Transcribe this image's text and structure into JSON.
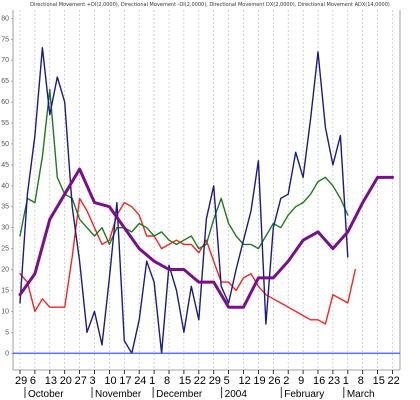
{
  "chart_data": {
    "type": "line",
    "title": "Directional Movement +DI(2,0000), Directional Movement -DI(2,0000), Directional Movement DX(2,0000), Directional Movement ADX(14,0000)",
    "ylim": [
      -4,
      82
    ],
    "y_ticks": [
      0,
      5,
      10,
      15,
      20,
      25,
      30,
      35,
      40,
      45,
      50,
      55,
      60,
      65,
      70,
      75,
      80
    ],
    "x_range": [
      0,
      38
    ],
    "x_ticks": [
      {
        "x": 0,
        "label": "29"
      },
      {
        "x": 1,
        "label": "6"
      },
      {
        "x": 2,
        "label": "13"
      },
      {
        "x": 3,
        "label": "20"
      },
      {
        "x": 4,
        "label": "27"
      },
      {
        "x": 5,
        "label": "3"
      },
      {
        "x": 6,
        "label": "10"
      },
      {
        "x": 7,
        "label": "17"
      },
      {
        "x": 8,
        "label": "24"
      },
      {
        "x": 9,
        "label": "1"
      },
      {
        "x": 10,
        "label": "8"
      },
      {
        "x": 11,
        "label": "15"
      },
      {
        "x": 12,
        "label": "22"
      },
      {
        "x": 13,
        "label": "29"
      },
      {
        "x": 14,
        "label": "5"
      },
      {
        "x": 15,
        "label": "12"
      },
      {
        "x": 16,
        "label": "19"
      },
      {
        "x": 17,
        "label": "26"
      },
      {
        "x": 18,
        "label": "2"
      },
      {
        "x": 19,
        "label": "9"
      },
      {
        "x": 20,
        "label": "16"
      },
      {
        "x": 21,
        "label": "23"
      },
      {
        "x": 22,
        "label": "1"
      },
      {
        "x": 23,
        "label": "8"
      },
      {
        "x": 24,
        "label": "15"
      },
      {
        "x": 25,
        "label": "22"
      }
    ],
    "month_labels": [
      {
        "x": 0.2,
        "label": "October"
      },
      {
        "x": 4.7,
        "label": "November"
      },
      {
        "x": 8.8,
        "label": "December"
      },
      {
        "x": 13.4,
        "label": "2004"
      },
      {
        "x": 17.4,
        "label": "February"
      },
      {
        "x": 21.6,
        "label": "March"
      }
    ],
    "hline": {
      "y": 0,
      "color": "#3d5cff"
    },
    "series": [
      {
        "color": "#ff2020",
        "points": [
          [
            0,
            19
          ],
          [
            0.5,
            17
          ],
          [
            1,
            10
          ],
          [
            1.5,
            13
          ],
          [
            2,
            11
          ],
          [
            2.5,
            11
          ],
          [
            3,
            11
          ],
          [
            3.5,
            23
          ],
          [
            4,
            37
          ],
          [
            4.5,
            34
          ],
          [
            5,
            30
          ],
          [
            5.5,
            26
          ],
          [
            6,
            27
          ],
          [
            6.5,
            33
          ],
          [
            7,
            36
          ],
          [
            7.5,
            35
          ],
          [
            8,
            33
          ],
          [
            8.5,
            28
          ],
          [
            9,
            28
          ],
          [
            9.5,
            25
          ],
          [
            10,
            26
          ],
          [
            10.5,
            27
          ],
          [
            11,
            26
          ],
          [
            11.5,
            26
          ],
          [
            12,
            24
          ],
          [
            12.5,
            27
          ],
          [
            13,
            22
          ],
          [
            13.5,
            17
          ],
          [
            14,
            17
          ],
          [
            14.5,
            15
          ],
          [
            15,
            18
          ],
          [
            15.5,
            19
          ],
          [
            16,
            16
          ],
          [
            16.5,
            14
          ],
          [
            17,
            13
          ],
          [
            17.5,
            12
          ],
          [
            18,
            11
          ],
          [
            18.5,
            10
          ],
          [
            19,
            9
          ],
          [
            19.5,
            8
          ],
          [
            20,
            8
          ],
          [
            20.5,
            7
          ],
          [
            21,
            14
          ],
          [
            21.5,
            13
          ],
          [
            22,
            12
          ],
          [
            22.5,
            20
          ]
        ]
      },
      {
        "color": "#1e7a1e",
        "points": [
          [
            0,
            28
          ],
          [
            0.5,
            37
          ],
          [
            1,
            36
          ],
          [
            1.5,
            47
          ],
          [
            2,
            63
          ],
          [
            2.5,
            42
          ],
          [
            3,
            38
          ],
          [
            3.5,
            37
          ],
          [
            4,
            32
          ],
          [
            4.5,
            30
          ],
          [
            5,
            28
          ],
          [
            5.5,
            30
          ],
          [
            6,
            26
          ],
          [
            6.5,
            30
          ],
          [
            7,
            30
          ],
          [
            7.5,
            29
          ],
          [
            8,
            31
          ],
          [
            8.5,
            30
          ],
          [
            9,
            28
          ],
          [
            9.5,
            29
          ],
          [
            10,
            27
          ],
          [
            10.5,
            26
          ],
          [
            11,
            27
          ],
          [
            11.5,
            28
          ],
          [
            12,
            25
          ],
          [
            12.5,
            26
          ],
          [
            13,
            32
          ],
          [
            13.5,
            37
          ],
          [
            14,
            31
          ],
          [
            14.5,
            28
          ],
          [
            15,
            26
          ],
          [
            15.5,
            26
          ],
          [
            16,
            25
          ],
          [
            16.5,
            28
          ],
          [
            17,
            31
          ],
          [
            17.5,
            30
          ],
          [
            18,
            33
          ],
          [
            18.5,
            35
          ],
          [
            19,
            36
          ],
          [
            19.5,
            38
          ],
          [
            20,
            41
          ],
          [
            20.5,
            42
          ],
          [
            21,
            40
          ],
          [
            21.5,
            37
          ],
          [
            22,
            33
          ]
        ]
      },
      {
        "color": "#1a1a8a",
        "points": [
          [
            0,
            12
          ],
          [
            0.5,
            38
          ],
          [
            1,
            52
          ],
          [
            1.5,
            73
          ],
          [
            2,
            57
          ],
          [
            2.5,
            66
          ],
          [
            3,
            60
          ],
          [
            3.5,
            35
          ],
          [
            4,
            22
          ],
          [
            4.5,
            5
          ],
          [
            5,
            10
          ],
          [
            5.5,
            2
          ],
          [
            6,
            18
          ],
          [
            6.5,
            36
          ],
          [
            7,
            3
          ],
          [
            7.5,
            0
          ],
          [
            8,
            8
          ],
          [
            8.5,
            22
          ],
          [
            9,
            17
          ],
          [
            9.5,
            0
          ],
          [
            10,
            21
          ],
          [
            10.5,
            15
          ],
          [
            11,
            5
          ],
          [
            11.5,
            16
          ],
          [
            12,
            8
          ],
          [
            12.5,
            32
          ],
          [
            13,
            40
          ],
          [
            13.5,
            16
          ],
          [
            14,
            12
          ],
          [
            14.5,
            20
          ],
          [
            15,
            27
          ],
          [
            15.5,
            34
          ],
          [
            16,
            46
          ],
          [
            16.5,
            7
          ],
          [
            17,
            30
          ],
          [
            17.5,
            37
          ],
          [
            18,
            38
          ],
          [
            18.5,
            48
          ],
          [
            19,
            42
          ],
          [
            19.5,
            56
          ],
          [
            20,
            72
          ],
          [
            20.5,
            54
          ],
          [
            21,
            45
          ],
          [
            21.5,
            52
          ],
          [
            22,
            23
          ]
        ]
      },
      {
        "color": "#7b0e8c",
        "points": [
          [
            0,
            14
          ],
          [
            1,
            19
          ],
          [
            2,
            32
          ],
          [
            3,
            38
          ],
          [
            4,
            44
          ],
          [
            5,
            36
          ],
          [
            6,
            35
          ],
          [
            7,
            30
          ],
          [
            8,
            25
          ],
          [
            9,
            22
          ],
          [
            10,
            20
          ],
          [
            11,
            20
          ],
          [
            12,
            17
          ],
          [
            13,
            17
          ],
          [
            14,
            11
          ],
          [
            15,
            11
          ],
          [
            16,
            18
          ],
          [
            17,
            18
          ],
          [
            18,
            22
          ],
          [
            19,
            27
          ],
          [
            20,
            29
          ],
          [
            21,
            25
          ],
          [
            22,
            29
          ],
          [
            23,
            36
          ],
          [
            24,
            42
          ],
          [
            25,
            42
          ]
        ]
      }
    ]
  }
}
